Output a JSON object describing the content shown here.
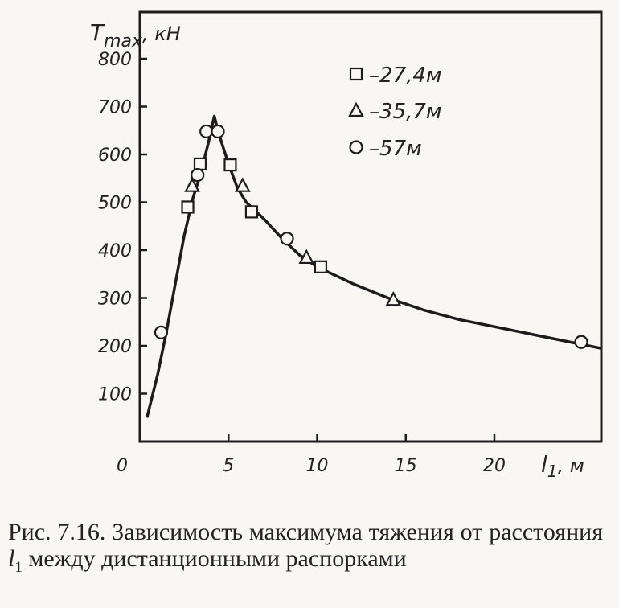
{
  "chart_data": {
    "type": "line",
    "ylabel": "T",
    "ylabel_sub": "max",
    "ylabel_unit": ", кН",
    "xlabel": "l",
    "xlabel_sub": "1",
    "xlabel_unit": ", м",
    "xlim": [
      0,
      26
    ],
    "ylim": [
      0,
      800
    ],
    "x_ticks": [
      0,
      5,
      10,
      15,
      20
    ],
    "y_ticks": [
      100,
      200,
      300,
      400,
      500,
      600,
      700,
      800
    ],
    "curve": {
      "x": [
        0.4,
        1.0,
        1.5,
        2.0,
        2.5,
        3.0,
        3.3,
        3.6,
        3.9,
        4.2,
        4.4,
        4.7,
        5.0,
        5.5,
        6.0,
        7.0,
        8.0,
        9.0,
        10.0,
        12.0,
        14.0,
        16.0,
        18.0,
        20.0,
        22.0,
        24.0,
        26.0
      ],
      "y": [
        50,
        140,
        230,
        330,
        430,
        510,
        545,
        585,
        630,
        680,
        650,
        615,
        580,
        530,
        500,
        465,
        425,
        390,
        365,
        330,
        300,
        275,
        255,
        240,
        225,
        210,
        195
      ]
    },
    "series": [
      {
        "name": "27,4м",
        "marker": "square",
        "x": [
          2.7,
          3.4,
          5.1,
          6.3,
          10.2
        ],
        "y": [
          490,
          580,
          578,
          480,
          365
        ]
      },
      {
        "name": "35,7м",
        "marker": "triangle",
        "x": [
          2.95,
          5.8,
          9.4,
          14.3
        ],
        "y": [
          535,
          535,
          385,
          297
        ]
      },
      {
        "name": "57м",
        "marker": "circle",
        "x": [
          1.2,
          3.25,
          3.75,
          4.4,
          8.3,
          24.9
        ],
        "y": [
          228,
          557,
          648,
          648,
          424,
          208
        ]
      }
    ],
    "legend": {
      "placement": "top-right",
      "prefix": "–"
    }
  },
  "caption": {
    "lead": "Рис. 7.16. Зависимость максимума тяжения от расстояния ",
    "var": "l",
    "var_sub": "1",
    "tail": " между дистанционными распорками"
  }
}
